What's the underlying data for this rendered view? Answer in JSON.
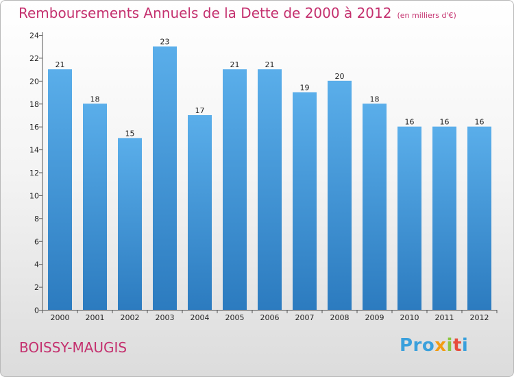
{
  "header": {
    "title": "Remboursements Annuels de la Dette de 2000 à 2012",
    "subtitle": "(en milliers d'€)"
  },
  "footer": {
    "commune": "BOISSY-MAUGIS",
    "logo": [
      "Pro",
      "x",
      "i",
      "t",
      "i"
    ]
  },
  "colors": {
    "accent": "#c4306e",
    "bar_top": "#5aaeea",
    "bar_bottom": "#2c7bbf"
  },
  "chart_data": {
    "type": "bar",
    "title": "Remboursements Annuels de la Dette de 2000 à 2012",
    "subtitle": "(en milliers d'€)",
    "xlabel": "",
    "ylabel": "",
    "categories": [
      "2000",
      "2001",
      "2002",
      "2003",
      "2004",
      "2005",
      "2006",
      "2007",
      "2008",
      "2009",
      "2010",
      "2011",
      "2012"
    ],
    "values": [
      21,
      18,
      15,
      23,
      17,
      21,
      21,
      19,
      20,
      18,
      16,
      16,
      16
    ],
    "ylim": [
      0,
      24
    ],
    "yticks": [
      0,
      2,
      4,
      6,
      8,
      10,
      12,
      14,
      16,
      18,
      20,
      22,
      24
    ],
    "grid": false,
    "legend": "none"
  }
}
